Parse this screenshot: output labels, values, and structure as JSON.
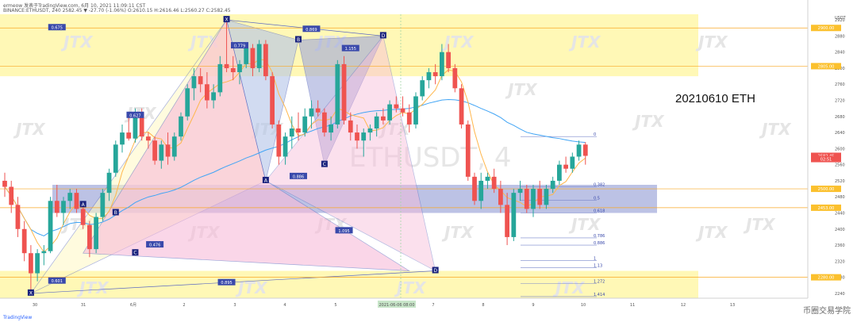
{
  "header": {
    "line1": "ermeow 发表于TradingView.com, 6月 10, 2021 11:09:11 CST",
    "line2": "BINANCE:ETHUSDT, 240 2582.45 ▼ -27.70 (-1.06%) O:2610.15 H:2616.46 L:2560.27 C:2582.45"
  },
  "annotation": "20210610 ETH",
  "watermark": "JTX",
  "watermark_center": "ETHUSDT, 4",
  "logo_text": "TradingView",
  "corner_watermark": "币圈交易学院",
  "colors": {
    "up": "#26a69a",
    "down": "#ef5350",
    "yellow_zone": "#fff59d",
    "blue_zone": "#9fa8da",
    "pink_pattern": "#f8bbd9",
    "ma_long": "#42a5f5",
    "ma_short": "#ffb74d",
    "marker": "#1a237e"
  },
  "chart_data": {
    "type": "candlestick",
    "symbol": "BINANCE:ETHUSDT",
    "timeframe": "240",
    "price_axis": {
      "label": "USDT",
      "ticks": [
        2920,
        2880,
        2840,
        2800,
        2760,
        2720,
        2680,
        2640,
        2600,
        2560,
        2520,
        2480,
        2440,
        2400,
        2360,
        2320,
        2280,
        2240
      ],
      "range": [
        2228,
        2934
      ]
    },
    "time_axis": {
      "labels": [
        "30",
        "31",
        "6月",
        "2",
        "3",
        "4",
        "5",
        "2021-06-06 08:00",
        "7",
        "8",
        "9",
        "10",
        "11",
        "12",
        "13"
      ]
    },
    "candles": [
      [
        2520,
        2540,
        2480,
        2505
      ],
      [
        2505,
        2520,
        2440,
        2460
      ],
      [
        2460,
        2480,
        2380,
        2400
      ],
      [
        2400,
        2420,
        2320,
        2340
      ],
      [
        2340,
        2360,
        2240,
        2290
      ],
      [
        2290,
        2350,
        2270,
        2340
      ],
      [
        2340,
        2360,
        2310,
        2345
      ],
      [
        2345,
        2480,
        2340,
        2470
      ],
      [
        2470,
        2510,
        2430,
        2440
      ],
      [
        2440,
        2480,
        2410,
        2470
      ],
      [
        2470,
        2500,
        2450,
        2490
      ],
      [
        2490,
        2500,
        2440,
        2450
      ],
      [
        2450,
        2460,
        2400,
        2410
      ],
      [
        2410,
        2420,
        2330,
        2350
      ],
      [
        2350,
        2440,
        2340,
        2430
      ],
      [
        2430,
        2500,
        2420,
        2490
      ],
      [
        2490,
        2550,
        2470,
        2540
      ],
      [
        2540,
        2620,
        2530,
        2610
      ],
      [
        2610,
        2660,
        2590,
        2640
      ],
      [
        2640,
        2680,
        2620,
        2625
      ],
      [
        2625,
        2700,
        2615,
        2690
      ],
      [
        2690,
        2700,
        2620,
        2630
      ],
      [
        2630,
        2640,
        2600,
        2620
      ],
      [
        2620,
        2630,
        2560,
        2570
      ],
      [
        2570,
        2620,
        2550,
        2610
      ],
      [
        2610,
        2640,
        2560,
        2580
      ],
      [
        2580,
        2640,
        2570,
        2630
      ],
      [
        2630,
        2690,
        2620,
        2680
      ],
      [
        2680,
        2760,
        2670,
        2750
      ],
      [
        2750,
        2800,
        2720,
        2780
      ],
      [
        2780,
        2800,
        2740,
        2760
      ],
      [
        2760,
        2790,
        2700,
        2720
      ],
      [
        2720,
        2760,
        2700,
        2740
      ],
      [
        2740,
        2830,
        2730,
        2810
      ],
      [
        2810,
        2920,
        2790,
        2800
      ],
      [
        2800,
        2830,
        2770,
        2790
      ],
      [
        2790,
        2820,
        2760,
        2810
      ],
      [
        2810,
        2860,
        2800,
        2850
      ],
      [
        2850,
        2860,
        2780,
        2800
      ],
      [
        2800,
        2870,
        2790,
        2860
      ],
      [
        2860,
        2870,
        2770,
        2780
      ],
      [
        2780,
        2790,
        2650,
        2660
      ],
      [
        2660,
        2670,
        2560,
        2580
      ],
      [
        2580,
        2640,
        2560,
        2630
      ],
      [
        2630,
        2680,
        2600,
        2650
      ],
      [
        2650,
        2690,
        2620,
        2640
      ],
      [
        2640,
        2700,
        2630,
        2680
      ],
      [
        2680,
        2720,
        2650,
        2700
      ],
      [
        2700,
        2720,
        2680,
        2690
      ],
      [
        2690,
        2700,
        2630,
        2640
      ],
      [
        2640,
        2680,
        2620,
        2660
      ],
      [
        2660,
        2820,
        2650,
        2810
      ],
      [
        2810,
        2830,
        2660,
        2670
      ],
      [
        2670,
        2690,
        2620,
        2640
      ],
      [
        2640,
        2660,
        2600,
        2620
      ],
      [
        2620,
        2650,
        2580,
        2640
      ],
      [
        2640,
        2660,
        2620,
        2650
      ],
      [
        2650,
        2690,
        2630,
        2680
      ],
      [
        2680,
        2700,
        2660,
        2670
      ],
      [
        2670,
        2720,
        2660,
        2710
      ],
      [
        2710,
        2730,
        2690,
        2700
      ],
      [
        2700,
        2730,
        2680,
        2690
      ],
      [
        2690,
        2710,
        2640,
        2660
      ],
      [
        2660,
        2740,
        2650,
        2730
      ],
      [
        2730,
        2780,
        2720,
        2770
      ],
      [
        2770,
        2800,
        2750,
        2790
      ],
      [
        2790,
        2810,
        2760,
        2780
      ],
      [
        2780,
        2860,
        2770,
        2840
      ],
      [
        2840,
        2860,
        2790,
        2800
      ],
      [
        2800,
        2810,
        2740,
        2750
      ],
      [
        2750,
        2760,
        2650,
        2660
      ],
      [
        2660,
        2670,
        2520,
        2530
      ],
      [
        2530,
        2540,
        2460,
        2470
      ],
      [
        2470,
        2540,
        2450,
        2520
      ],
      [
        2520,
        2540,
        2500,
        2530
      ],
      [
        2530,
        2550,
        2490,
        2500
      ],
      [
        2500,
        2520,
        2440,
        2460
      ],
      [
        2460,
        2490,
        2360,
        2380
      ],
      [
        2380,
        2500,
        2370,
        2490
      ],
      [
        2490,
        2520,
        2470,
        2500
      ],
      [
        2500,
        2510,
        2440,
        2450
      ],
      [
        2450,
        2510,
        2430,
        2500
      ],
      [
        2500,
        2520,
        2450,
        2460
      ],
      [
        2460,
        2510,
        2450,
        2500
      ],
      [
        2500,
        2530,
        2490,
        2520
      ],
      [
        2520,
        2570,
        2510,
        2560
      ],
      [
        2560,
        2580,
        2540,
        2550
      ],
      [
        2550,
        2590,
        2540,
        2580
      ],
      [
        2580,
        2620,
        2570,
        2610
      ],
      [
        2610,
        2616,
        2560,
        2582
      ]
    ],
    "zones": [
      {
        "type": "yellow",
        "from": 2780,
        "to": 2934
      },
      {
        "type": "yellow",
        "from": 2228,
        "to": 2296
      },
      {
        "type": "blue",
        "from": 2440,
        "to": 2510
      }
    ],
    "points": [
      {
        "label": "X",
        "price": 2920
      },
      {
        "label": "A",
        "price": 2520
      },
      {
        "label": "B",
        "price": 2870
      },
      {
        "label": "C",
        "price": 2560
      },
      {
        "label": "D",
        "price": 2880
      },
      {
        "label": "X",
        "price": 2240
      },
      {
        "label": "A",
        "price": 2460
      },
      {
        "label": "B",
        "price": 2440
      },
      {
        "label": "C",
        "price": 2340
      },
      {
        "label": "D",
        "price": 2296
      }
    ],
    "ratios": [
      "0.779",
      "0.869",
      "1.155",
      "0.886",
      "0.627",
      "0.476",
      "0.601",
      "0.895",
      "1.095",
      "0.675"
    ],
    "fib_levels": [
      {
        "label": "0",
        "price": 2630
      },
      {
        "label": "0.382",
        "price": 2505
      },
      {
        "label": "0.5",
        "price": 2472
      },
      {
        "label": "0.618",
        "price": 2440
      },
      {
        "label": "0.786",
        "price": 2378
      },
      {
        "label": "0.886",
        "price": 2360
      },
      {
        "label": "1",
        "price": 2322
      },
      {
        "label": "1.13",
        "price": 2304
      },
      {
        "label": "1.272",
        "price": 2264
      },
      {
        "label": "1.414",
        "price": 2232
      }
    ],
    "price_labels": [
      {
        "text": "2900.00",
        "price": 2900
      },
      {
        "text": "2805.00",
        "price": 2805
      },
      {
        "text": "2582.45",
        "price": 2582
      },
      {
        "text": "02:51",
        "price": 2574
      },
      {
        "text": "2500.00",
        "price": 2500
      },
      {
        "text": "2453.00",
        "price": 2453
      },
      {
        "text": "2280.00",
        "price": 2280
      }
    ]
  }
}
